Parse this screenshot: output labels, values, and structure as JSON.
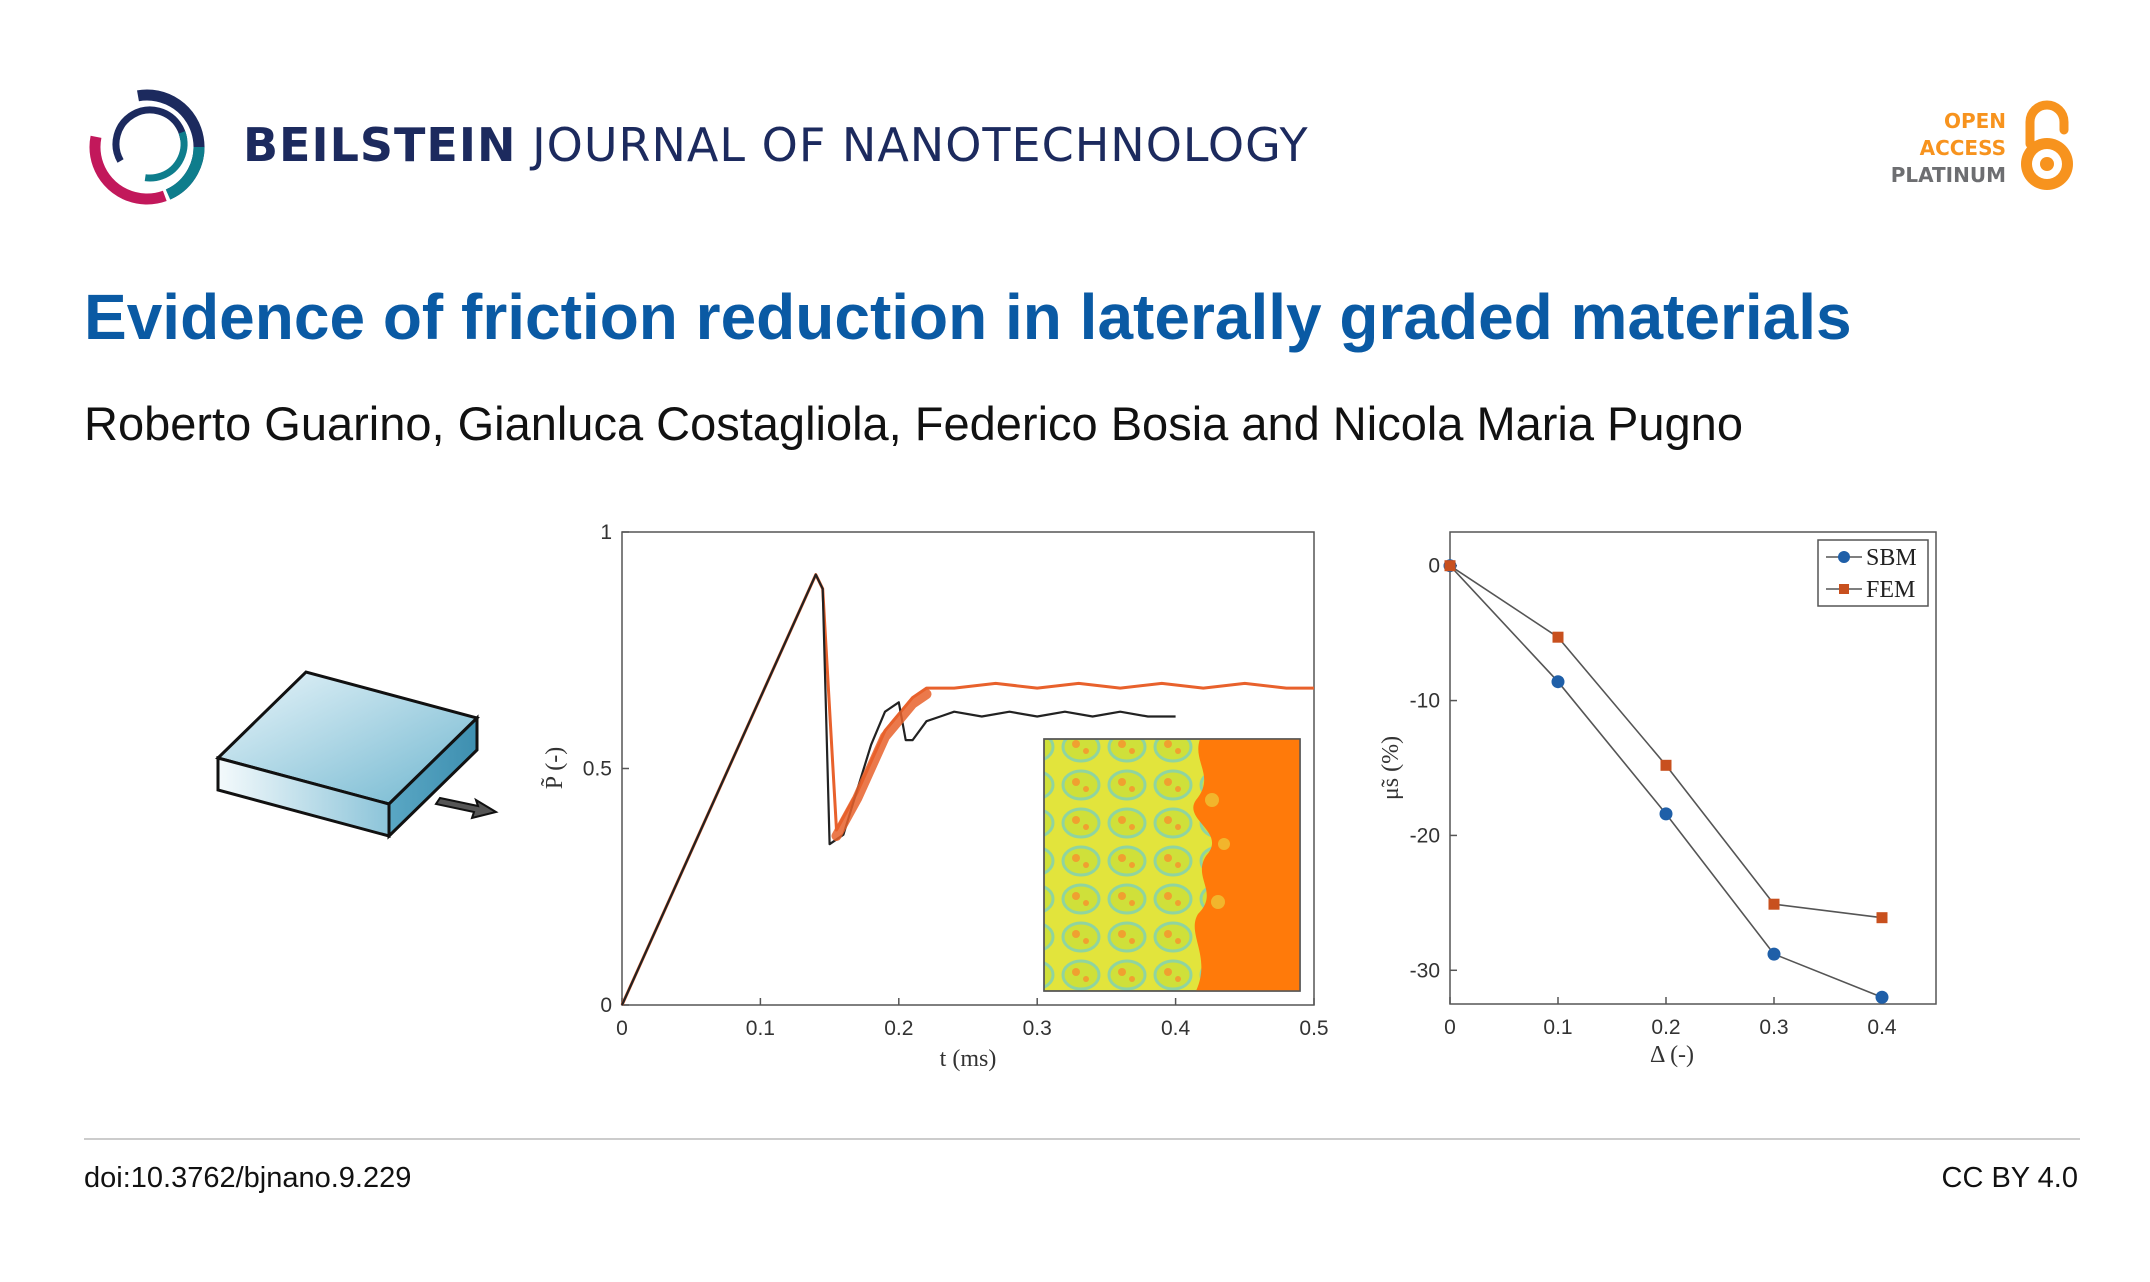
{
  "journal": {
    "name_bold": "BEILSTEIN",
    "name_rest": "JOURNAL OF NANOTECHNOLOGY"
  },
  "open_access": {
    "line1": "OPEN",
    "line2": "ACCESS",
    "line3": "PLATINUM"
  },
  "article": {
    "title": "Evidence of friction reduction in laterally graded materials",
    "authors": "Roberto Guarino, Gianluca Costagliola, Federico Bosia and Nicola Maria Pugno"
  },
  "footer": {
    "doi": "doi:10.3762/bjnano.9.229",
    "license": "CC BY 4.0"
  },
  "colors": {
    "title": "#0a5aa4",
    "journal": "#1c2a5e",
    "oa_orange": "#f7931e",
    "sbm": "#1f5fa8",
    "fem": "#c8501e"
  },
  "chart_data": [
    {
      "type": "line",
      "xlabel": "t (ms)",
      "ylabel": "P̃ (-)",
      "xlim": [
        0,
        0.5
      ],
      "ylim": [
        0,
        1
      ],
      "xticks": [
        "0",
        "0.1",
        "0.2",
        "0.3",
        "0.4",
        "0.5"
      ],
      "yticks": [
        "0",
        "0.5",
        "1"
      ],
      "series": [
        {
          "color": "#222222",
          "x": [
            0,
            0.14,
            0.145,
            0.15,
            0.16,
            0.18,
            0.19,
            0.2,
            0.205,
            0.21,
            0.22,
            0.23,
            0.24,
            0.26,
            0.28,
            0.3,
            0.32,
            0.34,
            0.36,
            0.38,
            0.4
          ],
          "y": [
            0,
            0.91,
            0.88,
            0.34,
            0.36,
            0.55,
            0.62,
            0.64,
            0.56,
            0.56,
            0.6,
            0.61,
            0.62,
            0.61,
            0.62,
            0.61,
            0.62,
            0.61,
            0.62,
            0.61,
            0.61
          ]
        },
        {
          "color": "#e8612c",
          "x": [
            0,
            0.14,
            0.145,
            0.155,
            0.17,
            0.19,
            0.21,
            0.22,
            0.24,
            0.27,
            0.3,
            0.33,
            0.36,
            0.39,
            0.42,
            0.45,
            0.48,
            0.5
          ],
          "y": [
            0,
            0.91,
            0.88,
            0.37,
            0.45,
            0.58,
            0.65,
            0.67,
            0.67,
            0.68,
            0.67,
            0.68,
            0.67,
            0.68,
            0.67,
            0.68,
            0.67,
            0.67
          ]
        }
      ]
    },
    {
      "type": "line",
      "xlabel": "Δ (-)",
      "ylabel": "μ̃s (%)",
      "xlim": [
        0,
        0.45
      ],
      "ylim": [
        -32.5,
        2.5
      ],
      "xticks": [
        "0",
        "0.1",
        "0.2",
        "0.3",
        "0.4"
      ],
      "yticks": [
        "0",
        "-10",
        "-20",
        "-30"
      ],
      "legend_position": "top-right",
      "x": [
        0,
        0.1,
        0.2,
        0.3,
        0.4
      ],
      "series": [
        {
          "name": "SBM",
          "marker": "circle",
          "color": "#1f5fa8",
          "values": [
            0,
            -8.6,
            -18.4,
            -28.8,
            -32.0
          ]
        },
        {
          "name": "FEM",
          "marker": "square",
          "color": "#c8501e",
          "values": [
            0,
            -5.3,
            -14.8,
            -25.1,
            -26.1
          ]
        }
      ]
    }
  ]
}
